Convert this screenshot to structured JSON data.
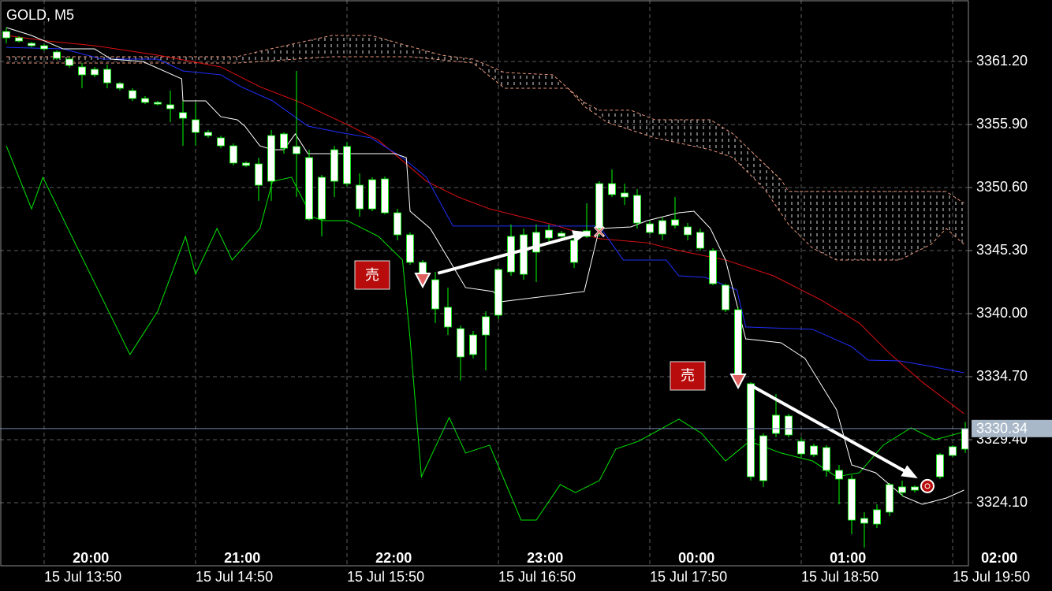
{
  "chart_data": {
    "type": "candlestick",
    "title": "GOLD, M5",
    "xlim": [
      -0.5,
      76.25
    ],
    "ylim": [
      3318.8,
      3366.37
    ],
    "yticks": [
      {
        "value": 3361.2,
        "label": "3361.20"
      },
      {
        "value": 3355.9,
        "label": "3355.90"
      },
      {
        "value": 3350.6,
        "label": "3350.60"
      },
      {
        "value": 3345.3,
        "label": "3345.30"
      },
      {
        "value": 3340.0,
        "label": "3340.00"
      },
      {
        "value": 3334.7,
        "label": "3334.70"
      },
      {
        "value": 3329.4,
        "label": "3329.40"
      },
      {
        "value": 3324.1,
        "label": "3324.10"
      }
    ],
    "xticks": [
      {
        "value": 3,
        "label": "15 Jul 13:50"
      },
      {
        "value": 15,
        "label": "15 Jul 14:50"
      },
      {
        "value": 27,
        "label": "15 Jul 15:50"
      },
      {
        "value": 39,
        "label": "15 Jul 16:50"
      },
      {
        "value": 51,
        "label": "15 Jul 17:50"
      },
      {
        "value": 63,
        "label": "15 Jul 18:50"
      },
      {
        "value": 75,
        "label": "15 Jul 19:50"
      }
    ],
    "xticks_local": [
      {
        "value": 6.7,
        "label": "20:00"
      },
      {
        "value": 18.7,
        "label": "21:00"
      },
      {
        "value": 30.7,
        "label": "22:00"
      },
      {
        "value": 42.7,
        "label": "23:00"
      },
      {
        "value": 54.7,
        "label": "00:00"
      },
      {
        "value": 66.7,
        "label": "01:00"
      },
      {
        "value": 78.7,
        "label": "02:00"
      }
    ],
    "grid": true,
    "grid_color": "#5c5c5c",
    "candle_color": "#ffffff",
    "wick_color": "#00ff00",
    "open": [
      3363.72,
      3363.19,
      3362.73,
      3362.53,
      3362.0,
      3361.4,
      3360.74,
      3360.08,
      3360.54,
      3359.35,
      3358.75,
      3358.09,
      3357.76,
      3357.56,
      3356.9,
      3356.3,
      3355.24,
      3354.78,
      3354.11,
      3352.66,
      3352.59,
      3351.13,
      3355.11,
      3354.05,
      3353.12,
      3347.95,
      3351.13,
      3354.05,
      3350.8,
      3348.81,
      3351.33,
      3348.48,
      3346.63,
      3344.31,
      3342.85,
      3340.53,
      3338.74,
      3336.56,
      3338.21,
      3339.87,
      3343.51,
      3346.63,
      3345.17,
      3346.36,
      3346.76,
      3344.31,
      3346.49,
      3347.16,
      3350.93,
      3350.14,
      3349.94,
      3347.55,
      3346.69,
      3347.42,
      3347.29,
      3346.83,
      3345.3,
      3342.39,
      3340.33,
      3334.11,
      3325.96,
      3329.93,
      3331.39,
      3329.27,
      3328.87,
      3328.74,
      3326.82,
      3326.09,
      3322.38,
      3322.31,
      3323.31,
      3325.43,
      3325.43,
      3325.16,
      3326.29,
      3328.08,
      3328.61
    ],
    "high": [
      3364.05,
      3363.32,
      3362.86,
      3362.66,
      3362.13,
      3361.53,
      3361.07,
      3360.74,
      3360.94,
      3359.48,
      3358.95,
      3358.29,
      3357.89,
      3358.75,
      3357.89,
      3357.76,
      3355.44,
      3354.97,
      3354.31,
      3352.79,
      3353.12,
      3355.44,
      3355.24,
      3360.41,
      3353.78,
      3351.66,
      3354.11,
      3354.44,
      3351.79,
      3351.46,
      3351.53,
      3348.81,
      3346.83,
      3344.51,
      3343.51,
      3342.19,
      3339.01,
      3338.54,
      3340.2,
      3343.84,
      3347.49,
      3347.16,
      3347.49,
      3347.49,
      3346.96,
      3346.49,
      3349.28,
      3351.13,
      3352.13,
      3350.93,
      3350.47,
      3347.82,
      3348.08,
      3349.81,
      3347.62,
      3347.16,
      3345.5,
      3342.52,
      3340.53,
      3334.24,
      3329.93,
      3333.24,
      3331.59,
      3329.6,
      3329.07,
      3328.94,
      3327.28,
      3326.42,
      3323.31,
      3323.97,
      3325.76,
      3325.96,
      3325.56,
      3325.96,
      3328.28,
      3328.94,
      3330.9
    ],
    "low": [
      3362.73,
      3362.79,
      3362.39,
      3362.13,
      3361.33,
      3360.67,
      3358.95,
      3359.88,
      3358.95,
      3358.75,
      3357.89,
      3357.62,
      3357.49,
      3356.1,
      3354.11,
      3354.11,
      3354.78,
      3353.91,
      3352.46,
      3352.32,
      3349.48,
      3349.48,
      3353.45,
      3349.81,
      3347.82,
      3346.49,
      3349.81,
      3350.73,
      3348.15,
      3348.61,
      3348.35,
      3346.16,
      3344.11,
      3342.98,
      3339.21,
      3338.21,
      3334.37,
      3336.23,
      3335.23,
      3339.54,
      3343.18,
      3342.85,
      3342.65,
      3345.83,
      3346.3,
      3343.84,
      3346.36,
      3346.49,
      3349.81,
      3349.14,
      3347.16,
      3346.69,
      3346.16,
      3347.16,
      3346.16,
      3345.3,
      3342.39,
      3340.13,
      3334.7,
      3325.96,
      3325.43,
      3329.6,
      3329.6,
      3327.94,
      3327.94,
      3326.29,
      3323.97,
      3321.45,
      3320.33,
      3321.98,
      3322.98,
      3324.63,
      3324.96,
      3324.96,
      3326.09,
      3327.94,
      3328.28
    ],
    "close": [
      3363.19,
      3362.92,
      3362.53,
      3362.26,
      3361.47,
      3360.87,
      3360.08,
      3360.54,
      3359.41,
      3358.95,
      3358.09,
      3357.76,
      3357.62,
      3357.23,
      3356.43,
      3355.24,
      3354.97,
      3354.11,
      3352.66,
      3352.46,
      3350.8,
      3354.97,
      3353.91,
      3353.45,
      3347.95,
      3351.46,
      3353.78,
      3350.93,
      3348.81,
      3351.26,
      3348.48,
      3346.63,
      3344.31,
      3343.18,
      3340.4,
      3338.88,
      3336.36,
      3338.21,
      3339.74,
      3343.71,
      3346.49,
      3343.31,
      3346.83,
      3347.02,
      3346.49,
      3346.16,
      3346.96,
      3350.93,
      3350.01,
      3349.81,
      3347.62,
      3346.83,
      3347.82,
      3347.89,
      3346.63,
      3345.5,
      3342.52,
      3340.33,
      3334.9,
      3326.29,
      3329.73,
      3331.46,
      3329.8,
      3328.21,
      3328.14,
      3326.82,
      3326.09,
      3322.64,
      3322.78,
      3323.51,
      3325.63,
      3324.96,
      3325.16,
      3325.82,
      3328.14,
      3328.81,
      3330.34
    ],
    "cloud": {
      "color": "#e8957a",
      "hatch_color": "#ffffff",
      "span_a_x": [
        0,
        18.3,
        20.1,
        25.8,
        28.9,
        34.5,
        37,
        39.5,
        43.3,
        45.8,
        47,
        49.5,
        51.4,
        55.8,
        57.6,
        61.4,
        62,
        74.5,
        75.9
      ],
      "span_a": [
        3361.6,
        3361.6,
        3362.06,
        3363.39,
        3363.39,
        3361.73,
        3361.4,
        3360.27,
        3360.08,
        3357.76,
        3357.1,
        3357.1,
        3356.3,
        3356.3,
        3355.11,
        3351.26,
        3350.27,
        3350.27,
        3349.28
      ],
      "span_b_x": [
        0,
        18.3,
        25.8,
        32,
        37,
        39.5,
        44.5,
        45.8,
        47.6,
        49.5,
        51.4,
        55.8,
        57.6,
        60.1,
        62,
        63.9,
        65.8,
        70.8,
        73.3,
        74.5,
        75.9
      ],
      "span_b": [
        3361.07,
        3361.07,
        3361.6,
        3361.6,
        3361.07,
        3358.95,
        3358.95,
        3357.43,
        3356.1,
        3355.44,
        3354.78,
        3353.78,
        3353.12,
        3350.47,
        3347.49,
        3345.5,
        3344.51,
        3344.51,
        3345.83,
        3347.16,
        3345.83
      ]
    },
    "lines": [
      {
        "color": "#00e600",
        "x": [
          0,
          2,
          2.9,
          5.8,
          9.8,
          12,
          14.2,
          15,
          16.7,
          17.9,
          20.1,
          21.1,
          22.6,
          24.2,
          25.1,
          27,
          29.5,
          31.4,
          32,
          32.9,
          35.1,
          36.4,
          38.3,
          40.8,
          42,
          43.9,
          45.1,
          47,
          48.3,
          50.1,
          53.3,
          55.1,
          57,
          58.9,
          61.4,
          63.9,
          65.8,
          67.6,
          69.5,
          71.7,
          73.6,
          75.9
        ],
        "values": [
          3354.11,
          3348.81,
          3351.46,
          3345.17,
          3336.56,
          3340.2,
          3346.49,
          3343.31,
          3347.16,
          3344.51,
          3347.16,
          3351.13,
          3351.46,
          3348.15,
          3347.82,
          3347.82,
          3346.49,
          3344.51,
          3337.88,
          3326.29,
          3331.26,
          3328.28,
          3328.94,
          3322.64,
          3322.64,
          3325.63,
          3324.96,
          3325.96,
          3328.61,
          3329.27,
          3331.13,
          3329.93,
          3327.61,
          3329.27,
          3328.28,
          3327.61,
          3326.29,
          3326.62,
          3328.94,
          3330.4,
          3329.4,
          3330.06
        ]
      },
      {
        "color": "#e01010",
        "x": [
          0,
          3.3,
          7,
          12,
          17,
          20.1,
          23.3,
          27,
          29.5,
          33.3,
          35.8,
          38.3,
          43.3,
          47,
          50.8,
          53.3,
          57,
          60.8,
          64.5,
          67.6,
          70.1,
          72.6,
          75.9
        ],
        "values": [
          3363.39,
          3362.92,
          3362.53,
          3361.73,
          3360.74,
          3359.08,
          3357.76,
          3355.9,
          3354.58,
          3351.13,
          3349.81,
          3348.81,
          3347.49,
          3346.3,
          3345.96,
          3345.3,
          3344.51,
          3343.18,
          3341.19,
          3339.21,
          3336.56,
          3334.24,
          3331.59
        ]
      },
      {
        "color": "#2030ff",
        "x": [
          0,
          4.5,
          7.6,
          12,
          14,
          17,
          18.6,
          21.1,
          23.9,
          26.4,
          28.9,
          31.4,
          33.3,
          35.4,
          47,
          48.9,
          52.3,
          53.3,
          55.4,
          57.9,
          58.6,
          63.9,
          67,
          68.3,
          70.8,
          73.3,
          75.9
        ],
        "values": [
          3362.39,
          3362.26,
          3361.4,
          3361.4,
          3360.41,
          3360.08,
          3359.08,
          3357.89,
          3355.77,
          3355.24,
          3354.78,
          3353.12,
          3351.46,
          3347.36,
          3347.36,
          3344.51,
          3344.51,
          3343.18,
          3343.05,
          3341.99,
          3338.88,
          3338.68,
          3337.22,
          3336.09,
          3336.03,
          3335.56,
          3335.03
        ]
      },
      {
        "color": "#ffffff",
        "x": [
          0,
          2,
          4.5,
          7,
          8.3,
          10.8,
          13.9,
          14,
          15.8,
          17,
          18.3,
          18.9,
          20.1,
          21.1,
          22,
          22.9,
          23.9,
          30.8,
          31.7,
          32,
          33.6,
          35.1,
          36.4,
          38.6,
          39.2,
          45.8,
          47,
          49.5,
          50.8,
          53.3,
          54.5,
          55.8,
          57,
          58.6,
          61.4,
          63.3,
          65.8,
          67,
          68.9,
          71.1,
          72.6,
          74.5,
          75.9
        ],
        "values": [
          3364.05,
          3363.39,
          3362.26,
          3362.26,
          3361.4,
          3361.2,
          3359.74,
          3357.89,
          3357.89,
          3356.56,
          3356.3,
          3355.77,
          3354.11,
          3353.78,
          3353.78,
          3355.11,
          3353.45,
          3353.45,
          3353.12,
          3348.61,
          3347.16,
          3344.51,
          3342.19,
          3341.86,
          3341.0,
          3341.86,
          3347.16,
          3347.29,
          3347.82,
          3348.48,
          3348.61,
          3347.16,
          3344.51,
          3337.88,
          3337.55,
          3336.23,
          3331.92,
          3327.28,
          3326.62,
          3324.63,
          3323.97,
          3324.5,
          3325.16
        ]
      }
    ],
    "trades": [
      {
        "label": "売",
        "entry_index": 33,
        "entry_price": 3342.85,
        "exit_index": 47,
        "exit_price": 3346.89,
        "exit_marker": "cross"
      },
      {
        "label": "売",
        "entry_index": 58,
        "entry_price": 3334.37,
        "exit_index": 73,
        "exit_price": 3325.5,
        "exit_marker": "circle"
      }
    ],
    "bid": 3330.34,
    "bid_color": "#7286ad",
    "bid_label_color": "#a9b8c8"
  }
}
